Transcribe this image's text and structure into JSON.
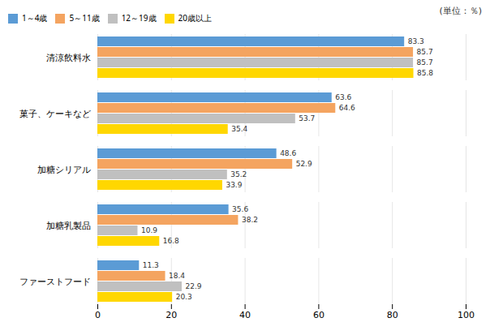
{
  "chart_data": {
    "type": "bar",
    "orientation": "horizontal",
    "categories": [
      "清涼飲料水",
      "菓子、ケーキなど",
      "加糖シリアル",
      "加糖乳製品",
      "ファーストフード"
    ],
    "series": [
      {
        "name": "1～4歳",
        "color": "#5B9BD5",
        "values": [
          83.3,
          63.6,
          48.6,
          35.6,
          11.3
        ]
      },
      {
        "name": "5～11歳",
        "color": "#F4A460",
        "values": [
          85.7,
          64.6,
          52.9,
          38.2,
          18.4
        ]
      },
      {
        "name": "12～19歳",
        "color": "#C0C0C0",
        "values": [
          85.7,
          53.7,
          35.2,
          10.9,
          22.9
        ]
      },
      {
        "name": "20歳以上",
        "color": "#FFD700",
        "values": [
          85.8,
          35.4,
          33.9,
          16.8,
          20.3
        ]
      }
    ],
    "xlim": [
      0,
      100
    ],
    "xticks": [
      0,
      20,
      40,
      60,
      80,
      100
    ],
    "annotations": [
      "(単位：％)"
    ],
    "grid": true,
    "legend": "top",
    "data_labels": true
  }
}
